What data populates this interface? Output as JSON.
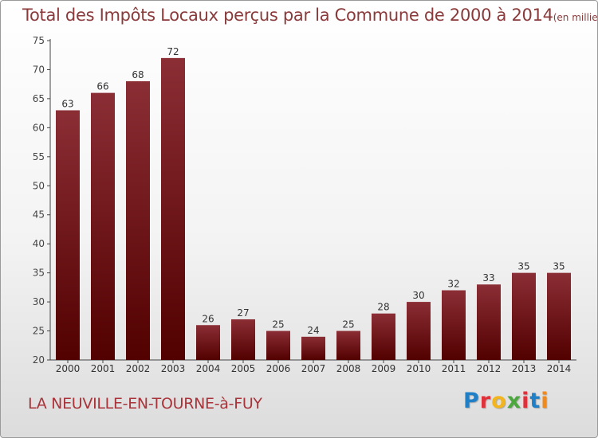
{
  "title": "Total des Impôts Locaux perçus par la Commune de 2000 à 2014",
  "unit": "(en milliers d'€)",
  "commune": "LA NEUVILLE-EN-TOURNE-à-FUY",
  "logo": {
    "text": "Proxiti",
    "colors": [
      "#1f7fc7",
      "#e0303a",
      "#f2b51d",
      "#4aa83c",
      "#e0303a",
      "#1f7fc7",
      "#f08a1d"
    ]
  },
  "colors": {
    "bar_top": "#8b2e35",
    "bar_bottom": "#520000",
    "title": "#8a3a3a",
    "commune": "#a8343a"
  },
  "chart_data": {
    "type": "bar",
    "title": "Total des Impôts Locaux perçus par la Commune de 2000 à 2014",
    "categories": [
      "2000",
      "2001",
      "2002",
      "2003",
      "2004",
      "2005",
      "2006",
      "2007",
      "2008",
      "2009",
      "2010",
      "2011",
      "2012",
      "2013",
      "2014"
    ],
    "values": [
      63,
      66,
      68,
      72,
      26,
      27,
      25,
      24,
      25,
      28,
      30,
      32,
      33,
      35,
      35
    ],
    "ylim": [
      20,
      75
    ],
    "yticks": [
      20,
      25,
      30,
      35,
      40,
      45,
      50,
      55,
      60,
      65,
      70,
      75
    ],
    "grid": false,
    "data_labels": true
  }
}
